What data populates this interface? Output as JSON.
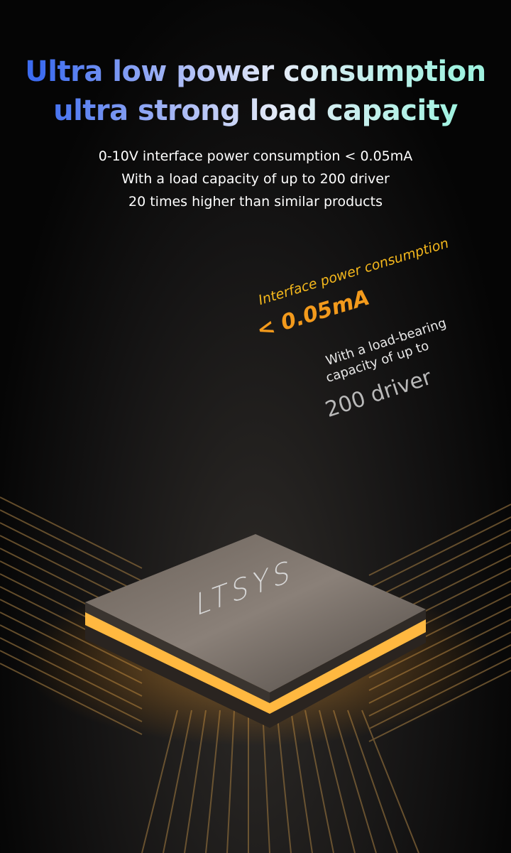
{
  "headline": {
    "line1": "Ultra low power consumption",
    "line2": "ultra strong load capacity"
  },
  "subtext": [
    "0-10V interface power consumption < 0.05mA",
    "With a load capacity of up to 200 driver",
    "20 times higher than similar products"
  ],
  "callouts": {
    "power_label": "Interface power consumption",
    "power_value": "< 0.05mA",
    "load_line1": "With a load-bearing",
    "load_line2": "capacity of up to",
    "load_value": "200 driver"
  },
  "chip": {
    "brand": "LTSYS"
  },
  "colors": {
    "accent_orange": "#f5a623",
    "accent_blue": "#3d6cf0",
    "accent_teal": "#9ff2e0"
  }
}
